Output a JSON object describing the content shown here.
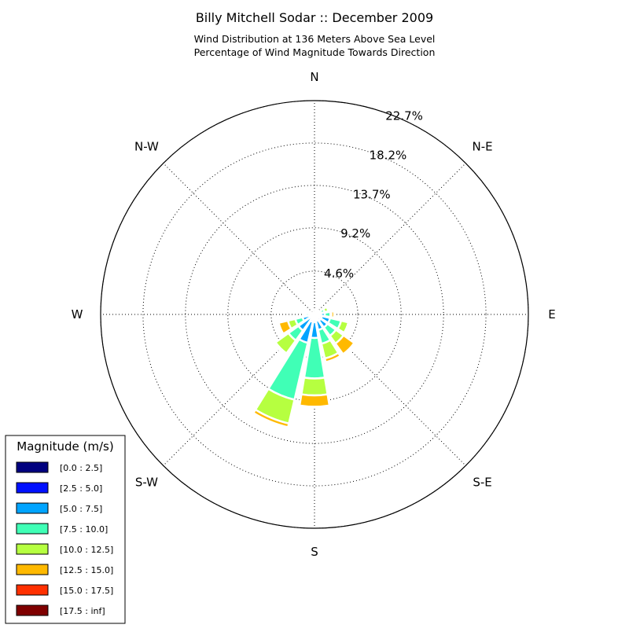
{
  "chart_data": {
    "type": "windrose",
    "title": "Billy Mitchell Sodar :: December 2009",
    "subtitle_lines": [
      "Wind Distribution at 136 Meters Above Sea Level",
      "Percentage of Wind Magnitude Towards Direction"
    ],
    "direction_labels": [
      "N",
      "N-E",
      "E",
      "S-E",
      "S",
      "S-W",
      "W",
      "N-W"
    ],
    "radial_ticks": [
      4.6,
      9.2,
      13.7,
      18.2,
      22.7
    ],
    "radial_tick_labels": [
      "4.6%",
      "9.2%",
      "13.7%",
      "18.2%",
      "22.7%"
    ],
    "rmax": 22.7,
    "sectors_deg": [
      0,
      22.5,
      45,
      67.5,
      90,
      112.5,
      135,
      157.5,
      180,
      202.5,
      225,
      247.5,
      270,
      292.5,
      315,
      337.5
    ],
    "legend": {
      "title": "Magnitude (m/s)",
      "position": "lower-left",
      "bins": [
        {
          "label": "[0.0 : 2.5]",
          "color": "#00007f"
        },
        {
          "label": "[2.5 : 5.0]",
          "color": "#0010ff"
        },
        {
          "label": "[5.0 : 7.5]",
          "color": "#00a4ff"
        },
        {
          "label": "[7.5 : 10.0]",
          "color": "#40ffb6"
        },
        {
          "label": "[10.0 : 12.5]",
          "color": "#b6ff40"
        },
        {
          "label": "[12.5 : 15.0]",
          "color": "#ffb900"
        },
        {
          "label": "[15.0 : 17.5]",
          "color": "#ff3000"
        },
        {
          "label": "[17.5 : inf]",
          "color": "#7f0000"
        }
      ]
    },
    "series": [
      {
        "name": "[0.0 : 2.5]",
        "values": [
          0.1,
          0.1,
          0.2,
          0.2,
          0.2,
          0.2,
          0.2,
          0.2,
          0.2,
          0.2,
          0.2,
          0.2,
          0.1,
          0.1,
          0.1,
          0.1
        ]
      },
      {
        "name": "[2.5 : 5.0]",
        "values": [
          0.1,
          0.3,
          0.2,
          0.3,
          0.5,
          0.6,
          0.6,
          0.5,
          0.6,
          0.6,
          0.3,
          0.3,
          0.2,
          0.1,
          0.1,
          0.1
        ]
      },
      {
        "name": "[5.0 : 7.5]",
        "values": [
          0.1,
          0.1,
          0.1,
          0.2,
          0.4,
          0.9,
          0.9,
          1.0,
          1.7,
          2.3,
          1.6,
          0.8,
          0.3,
          0.1,
          0.0,
          0.0
        ]
      },
      {
        "name": "[7.5 : 10.0]",
        "values": [
          0.0,
          0.1,
          0.1,
          0.4,
          0.6,
          1.2,
          1.1,
          1.5,
          4.3,
          6.2,
          1.3,
          0.8,
          0.3,
          0.1,
          0.0,
          0.0
        ]
      },
      {
        "name": "[10.0 : 12.5]",
        "values": [
          0.0,
          0.0,
          0.0,
          0.4,
          0.1,
          0.8,
          1.0,
          1.6,
          1.8,
          2.6,
          1.7,
          0.8,
          0.2,
          0.0,
          0.0,
          0.0
        ]
      },
      {
        "name": "[12.5 : 15.0]",
        "values": [
          0.0,
          0.0,
          0.0,
          0.0,
          0.3,
          0.0,
          1.4,
          0.4,
          1.2,
          0.4,
          0.1,
          1.0,
          0.0,
          0.0,
          0.0,
          0.0
        ]
      },
      {
        "name": "[15.0 : 17.5]",
        "values": [
          0.0,
          0.0,
          0.0,
          0.0,
          0.1,
          0.1,
          0.2,
          0.0,
          0.0,
          0.0,
          0.1,
          0.0,
          0.0,
          0.0,
          0.0,
          0.0
        ]
      },
      {
        "name": "[17.5 : inf]",
        "values": [
          0.0,
          0.0,
          0.0,
          0.0,
          0.0,
          0.0,
          0.0,
          0.0,
          0.0,
          0.0,
          0.0,
          0.0,
          0.0,
          0.0,
          0.0,
          0.0
        ]
      }
    ],
    "grid": true
  }
}
